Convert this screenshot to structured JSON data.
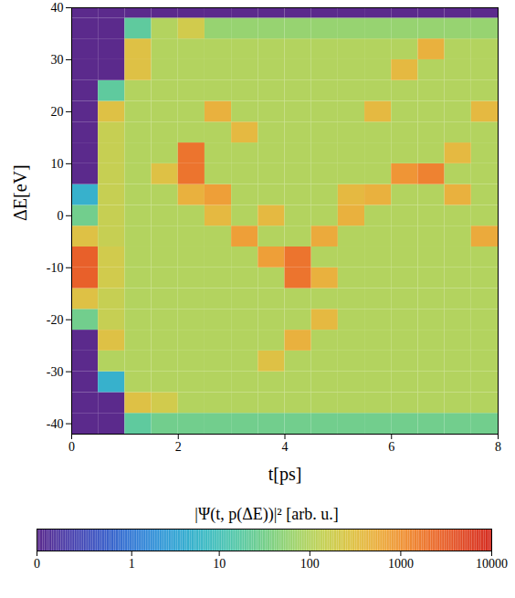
{
  "chart_data": {
    "type": "heatmap",
    "xlabel": "t[ps]",
    "ylabel": "ΔE[eV]",
    "xlim": [
      0,
      8
    ],
    "xticks": [
      0,
      2,
      4,
      6,
      8
    ],
    "ylim": [
      -42,
      40
    ],
    "yticks": [
      -40,
      -30,
      -20,
      -10,
      0,
      10,
      20,
      30,
      40
    ],
    "t_edges": [
      0,
      0.5,
      1,
      1.5,
      2,
      2.5,
      3,
      3.5,
      4,
      4.5,
      5,
      5.5,
      6,
      6.5,
      7,
      7.5,
      8
    ],
    "e_edges": [
      -42,
      -38,
      -34,
      -30,
      -26,
      -22,
      -18,
      -14,
      -10,
      -6,
      -2,
      2,
      6,
      10,
      14,
      18,
      22,
      26,
      30,
      34,
      38,
      40
    ],
    "cells": [
      [
        0,
        0,
        0,
        0,
        0,
        30,
        300,
        3000,
        3000,
        300,
        30,
        5,
        0,
        0,
        0,
        0,
        0,
        0,
        0,
        0,
        0
      ],
      [
        0,
        0,
        5,
        100,
        300,
        150,
        150,
        200,
        200,
        150,
        150,
        150,
        150,
        150,
        150,
        300,
        20,
        0,
        0,
        0,
        0
      ],
      [
        20,
        300,
        100,
        100,
        100,
        100,
        100,
        100,
        100,
        100,
        100,
        100,
        100,
        100,
        100,
        100,
        100,
        300,
        300,
        20,
        0
      ],
      [
        30,
        200,
        100,
        100,
        100,
        100,
        100,
        100,
        100,
        100,
        100,
        100,
        300,
        100,
        100,
        100,
        100,
        100,
        100,
        100,
        0
      ],
      [
        30,
        100,
        100,
        100,
        100,
        100,
        100,
        100,
        100,
        100,
        100,
        500,
        2000,
        2000,
        100,
        100,
        100,
        100,
        100,
        200,
        0
      ],
      [
        30,
        100,
        100,
        100,
        100,
        100,
        100,
        100,
        100,
        100,
        400,
        800,
        100,
        100,
        100,
        500,
        100,
        100,
        100,
        60,
        0
      ],
      [
        30,
        100,
        100,
        100,
        100,
        100,
        100,
        100,
        100,
        800,
        100,
        100,
        100,
        100,
        400,
        100,
        100,
        100,
        100,
        60,
        0
      ],
      [
        30,
        100,
        100,
        300,
        100,
        100,
        100,
        100,
        800,
        100,
        400,
        100,
        100,
        100,
        100,
        100,
        100,
        100,
        100,
        60,
        0
      ],
      [
        30,
        100,
        100,
        100,
        500,
        100,
        100,
        2000,
        2000,
        100,
        100,
        100,
        100,
        100,
        100,
        100,
        100,
        100,
        100,
        60,
        0
      ],
      [
        30,
        100,
        100,
        100,
        100,
        400,
        100,
        500,
        100,
        600,
        100,
        100,
        100,
        100,
        100,
        100,
        100,
        100,
        100,
        60,
        0
      ],
      [
        30,
        100,
        100,
        100,
        100,
        100,
        100,
        100,
        100,
        100,
        500,
        400,
        100,
        100,
        100,
        100,
        100,
        100,
        100,
        60,
        0
      ],
      [
        30,
        100,
        100,
        100,
        100,
        100,
        100,
        100,
        100,
        100,
        100,
        500,
        100,
        100,
        100,
        400,
        100,
        100,
        100,
        60,
        0
      ],
      [
        30,
        100,
        100,
        100,
        100,
        100,
        100,
        100,
        100,
        100,
        100,
        100,
        1000,
        100,
        100,
        100,
        100,
        400,
        100,
        60,
        0
      ],
      [
        30,
        100,
        100,
        100,
        100,
        100,
        100,
        100,
        100,
        100,
        100,
        100,
        1500,
        100,
        100,
        100,
        100,
        100,
        500,
        60,
        0
      ],
      [
        30,
        100,
        100,
        100,
        100,
        100,
        100,
        100,
        100,
        100,
        100,
        500,
        100,
        400,
        100,
        100,
        100,
        100,
        100,
        60,
        0
      ],
      [
        30,
        100,
        100,
        100,
        100,
        100,
        100,
        100,
        100,
        600,
        100,
        100,
        100,
        100,
        100,
        400,
        100,
        100,
        100,
        60,
        0
      ]
    ],
    "colorbar": {
      "label": "|Ψ(t, p(ΔE))|² [arb. u.]",
      "range": [
        0,
        10000
      ],
      "ticks": [
        0,
        1,
        10,
        100,
        1000,
        10000
      ]
    }
  }
}
